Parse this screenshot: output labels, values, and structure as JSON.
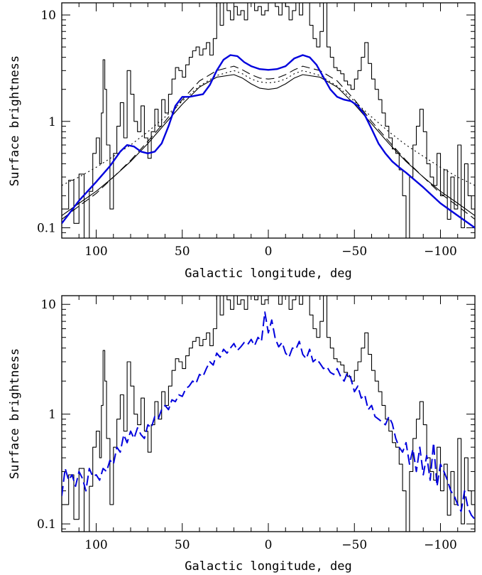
{
  "chart_data": [
    {
      "type": "line",
      "xlabel": "Galactic longitude, deg",
      "ylabel": "Surface brightness",
      "xlim": [
        120,
        -120
      ],
      "ylim": [
        0.08,
        13
      ],
      "yscale": "log",
      "x_ticks": [
        100,
        50,
        0,
        -50,
        -100
      ],
      "x_tick_labels": [
        "100",
        "50",
        "0",
        "−50",
        "−100"
      ],
      "y_ticks": [
        0.1,
        1,
        10
      ],
      "y_tick_labels": [
        "0.1",
        "1",
        "10"
      ],
      "series": [
        {
          "style": "step",
          "color": "#000000",
          "x": [
            120,
            116,
            113,
            110,
            107,
            104,
            102,
            100,
            98,
            97,
            96,
            95,
            94,
            92,
            90,
            88,
            86,
            84,
            82,
            80,
            78,
            76,
            74,
            72,
            70,
            68,
            66,
            64,
            62,
            60,
            58,
            56,
            54,
            52,
            50,
            48,
            46,
            44,
            42,
            40,
            38,
            36,
            34,
            32,
            30,
            28,
            26,
            24,
            22,
            20,
            18,
            16,
            14,
            12,
            10,
            8,
            6,
            4,
            2,
            0,
            -2,
            -4,
            -6,
            -8,
            -10,
            -12,
            -14,
            -16,
            -18,
            -20,
            -22,
            -24,
            -26,
            -28,
            -30,
            -32,
            -34,
            -36,
            -38,
            -40,
            -42,
            -44,
            -46,
            -48,
            -50,
            -52,
            -54,
            -56,
            -58,
            -60,
            -62,
            -64,
            -66,
            -68,
            -70,
            -72,
            -74,
            -76,
            -78,
            -80,
            -82,
            -84,
            -86,
            -88,
            -90,
            -92,
            -94,
            -96,
            -98,
            -100,
            -102,
            -104,
            -106,
            -108,
            -110,
            -112,
            -114,
            -116,
            -118,
            -120
          ],
          "y": [
            0.15,
            0.28,
            0.11,
            0.32,
            0.08,
            0.22,
            0.5,
            0.7,
            0.4,
            1.2,
            3.8,
            2.0,
            0.6,
            0.15,
            0.5,
            0.9,
            1.5,
            0.7,
            3.0,
            1.8,
            1.0,
            0.8,
            1.4,
            0.7,
            0.45,
            0.8,
            1.3,
            0.9,
            1.6,
            1.2,
            1.8,
            2.5,
            3.2,
            3.0,
            2.6,
            3.4,
            4.0,
            4.6,
            5.0,
            4.2,
            4.8,
            5.5,
            4.2,
            6.0,
            20,
            8,
            15,
            11,
            9,
            12,
            10,
            11,
            9,
            20,
            13,
            11,
            12,
            10,
            11,
            15,
            13,
            12,
            10,
            18,
            12,
            9,
            11,
            14,
            10,
            13,
            20,
            8,
            6,
            5,
            7,
            15,
            5,
            4,
            3.2,
            3.0,
            2.8,
            2.4,
            2.2,
            2.0,
            2.5,
            3.0,
            4.0,
            5.5,
            3.5,
            2.5,
            2.0,
            1.6,
            1.2,
            0.9,
            0.7,
            0.55,
            0.5,
            0.35,
            0.2,
            0.08,
            0.3,
            0.6,
            0.9,
            1.3,
            0.8,
            0.4,
            0.3,
            0.25,
            0.5,
            0.2,
            0.35,
            0.12,
            0.3,
            0.15,
            0.6,
            0.1,
            0.4,
            0.2,
            0.15,
            0.12
          ]
        },
        {
          "style": "solid",
          "color": "#000000",
          "x": [
            120,
            110,
            100,
            90,
            80,
            70,
            60,
            50,
            40,
            30,
            20,
            15,
            10,
            5,
            0,
            -5,
            -10,
            -15,
            -20,
            -30,
            -40,
            -50,
            -60,
            -70,
            -80,
            -90,
            -100,
            -110,
            -120
          ],
          "y": [
            0.13,
            0.17,
            0.22,
            0.3,
            0.42,
            0.62,
            0.95,
            1.45,
            2.1,
            2.6,
            2.75,
            2.55,
            2.25,
            2.05,
            2.0,
            2.05,
            2.25,
            2.55,
            2.75,
            2.6,
            2.1,
            1.45,
            0.95,
            0.62,
            0.42,
            0.3,
            0.22,
            0.17,
            0.13
          ]
        },
        {
          "style": "dashed",
          "color": "#000000",
          "x": [
            120,
            110,
            100,
            90,
            80,
            70,
            60,
            50,
            40,
            30,
            20,
            15,
            10,
            5,
            0,
            -5,
            -10,
            -15,
            -20,
            -30,
            -40,
            -50,
            -60,
            -70,
            -80,
            -90,
            -100,
            -110,
            -120
          ],
          "y": [
            0.12,
            0.16,
            0.21,
            0.3,
            0.43,
            0.65,
            1.0,
            1.6,
            2.4,
            3.0,
            3.3,
            3.05,
            2.75,
            2.55,
            2.5,
            2.55,
            2.75,
            3.05,
            3.3,
            3.0,
            2.4,
            1.6,
            1.0,
            0.65,
            0.43,
            0.3,
            0.21,
            0.16,
            0.12
          ]
        },
        {
          "style": "dotted",
          "color": "#000000",
          "x": [
            120,
            110,
            100,
            90,
            80,
            70,
            60,
            50,
            40,
            30,
            20,
            15,
            10,
            5,
            0,
            -5,
            -10,
            -15,
            -20,
            -30,
            -40,
            -50,
            -60,
            -70,
            -80,
            -90,
            -100,
            -110,
            -120
          ],
          "y": [
            0.25,
            0.3,
            0.37,
            0.47,
            0.6,
            0.8,
            1.1,
            1.55,
            2.15,
            2.7,
            3.0,
            2.8,
            2.5,
            2.35,
            2.3,
            2.35,
            2.5,
            2.8,
            3.0,
            2.7,
            2.15,
            1.55,
            1.1,
            0.8,
            0.6,
            0.47,
            0.37,
            0.3,
            0.25
          ]
        },
        {
          "style": "solid",
          "color": "#0000dd",
          "width": 2.4,
          "x": [
            120,
            110,
            100,
            92,
            86,
            82,
            78,
            74,
            70,
            66,
            62,
            58,
            54,
            50,
            46,
            42,
            38,
            34,
            30,
            26,
            22,
            18,
            14,
            10,
            5,
            0,
            -5,
            -10,
            -15,
            -20,
            -24,
            -28,
            -32,
            -36,
            -40,
            -44,
            -48,
            -52,
            -56,
            -60,
            -64,
            -68,
            -72,
            -76,
            -80,
            -90,
            -100,
            -110,
            -120
          ],
          "y": [
            0.11,
            0.18,
            0.27,
            0.38,
            0.52,
            0.6,
            0.58,
            0.52,
            0.5,
            0.52,
            0.62,
            0.9,
            1.4,
            1.7,
            1.7,
            1.75,
            1.8,
            2.2,
            3.0,
            3.8,
            4.2,
            4.1,
            3.6,
            3.3,
            3.1,
            3.05,
            3.1,
            3.3,
            3.9,
            4.2,
            4.0,
            3.4,
            2.6,
            2.0,
            1.7,
            1.6,
            1.55,
            1.4,
            1.15,
            0.85,
            0.62,
            0.5,
            0.42,
            0.37,
            0.33,
            0.24,
            0.17,
            0.13,
            0.1
          ]
        }
      ]
    },
    {
      "type": "line",
      "xlabel": "Galactic longitude, deg",
      "ylabel": "Surface brightness",
      "xlim": [
        120,
        -120
      ],
      "ylim": [
        0.085,
        12
      ],
      "yscale": "log",
      "x_ticks": [
        100,
        50,
        0,
        -50,
        -100
      ],
      "x_tick_labels": [
        "100",
        "50",
        "0",
        "−50",
        "−100"
      ],
      "y_ticks": [
        0.1,
        1,
        10
      ],
      "y_tick_labels": [
        "0.1",
        "1",
        "10"
      ],
      "series": [
        {
          "style": "step",
          "color": "#000000",
          "x": [
            120,
            116,
            113,
            110,
            107,
            104,
            102,
            100,
            98,
            97,
            96,
            95,
            94,
            92,
            90,
            88,
            86,
            84,
            82,
            80,
            78,
            76,
            74,
            72,
            70,
            68,
            66,
            64,
            62,
            60,
            58,
            56,
            54,
            52,
            50,
            48,
            46,
            44,
            42,
            40,
            38,
            36,
            34,
            32,
            30,
            28,
            26,
            24,
            22,
            20,
            18,
            16,
            14,
            12,
            10,
            8,
            6,
            4,
            2,
            0,
            -2,
            -4,
            -6,
            -8,
            -10,
            -12,
            -14,
            -16,
            -18,
            -20,
            -22,
            -24,
            -26,
            -28,
            -30,
            -32,
            -34,
            -36,
            -38,
            -40,
            -42,
            -44,
            -46,
            -48,
            -50,
            -52,
            -54,
            -56,
            -58,
            -60,
            -62,
            -64,
            -66,
            -68,
            -70,
            -72,
            -74,
            -76,
            -78,
            -80,
            -82,
            -84,
            -86,
            -88,
            -90,
            -92,
            -94,
            -96,
            -98,
            -100,
            -102,
            -104,
            -106,
            -108,
            -110,
            -112,
            -114,
            -116,
            -118,
            -120
          ],
          "y": [
            0.15,
            0.28,
            0.11,
            0.32,
            0.08,
            0.22,
            0.5,
            0.7,
            0.4,
            1.2,
            3.8,
            2.0,
            0.6,
            0.15,
            0.5,
            0.9,
            1.5,
            0.7,
            3.0,
            1.8,
            1.0,
            0.8,
            1.4,
            0.7,
            0.45,
            0.8,
            1.3,
            0.9,
            1.6,
            1.2,
            1.8,
            2.5,
            3.2,
            3.0,
            2.6,
            3.4,
            4.0,
            4.6,
            5.0,
            4.2,
            4.8,
            5.5,
            4.2,
            6.0,
            20,
            8,
            15,
            11,
            9,
            12,
            10,
            11,
            9,
            20,
            13,
            11,
            12,
            10,
            11,
            15,
            13,
            12,
            10,
            18,
            12,
            9,
            11,
            14,
            10,
            13,
            20,
            8,
            6,
            5,
            7,
            15,
            5,
            4,
            3.2,
            3.0,
            2.8,
            2.4,
            2.2,
            2.0,
            2.5,
            3.0,
            4.0,
            5.5,
            3.5,
            2.5,
            2.0,
            1.6,
            1.2,
            0.9,
            0.7,
            0.55,
            0.5,
            0.35,
            0.2,
            0.08,
            0.3,
            0.6,
            0.9,
            1.3,
            0.8,
            0.4,
            0.3,
            0.25,
            0.5,
            0.2,
            0.35,
            0.12,
            0.3,
            0.15,
            0.6,
            0.1,
            0.4,
            0.2,
            0.15,
            0.12
          ]
        },
        {
          "style": "dashed",
          "color": "#0000dd",
          "width": 2.0,
          "x": [
            120,
            118,
            116,
            114,
            112,
            110,
            108,
            106,
            104,
            102,
            100,
            98,
            96,
            94,
            92,
            90,
            88,
            86,
            84,
            82,
            80,
            78,
            76,
            74,
            72,
            70,
            68,
            66,
            64,
            62,
            60,
            58,
            56,
            54,
            52,
            50,
            48,
            46,
            44,
            42,
            40,
            38,
            36,
            34,
            32,
            30,
            28,
            26,
            24,
            22,
            20,
            18,
            16,
            14,
            12,
            10,
            8,
            6,
            4,
            2,
            0,
            -2,
            -4,
            -6,
            -8,
            -10,
            -12,
            -14,
            -16,
            -18,
            -20,
            -22,
            -24,
            -26,
            -28,
            -30,
            -32,
            -34,
            -36,
            -38,
            -40,
            -42,
            -44,
            -46,
            -48,
            -50,
            -52,
            -54,
            -56,
            -58,
            -60,
            -62,
            -64,
            -66,
            -68,
            -70,
            -72,
            -74,
            -76,
            -78,
            -80,
            -82,
            -84,
            -86,
            -88,
            -90,
            -92,
            -94,
            -96,
            -98,
            -100,
            -102,
            -104,
            -106,
            -108,
            -110,
            -112,
            -114,
            -116,
            -118,
            -120
          ],
          "y": [
            0.18,
            0.32,
            0.25,
            0.28,
            0.22,
            0.3,
            0.26,
            0.2,
            0.32,
            0.27,
            0.28,
            0.25,
            0.32,
            0.3,
            0.38,
            0.35,
            0.5,
            0.45,
            0.65,
            0.55,
            0.7,
            0.6,
            0.75,
            0.65,
            0.6,
            0.8,
            0.75,
            0.95,
            0.9,
            1.1,
            1.2,
            1.1,
            1.35,
            1.3,
            1.5,
            1.45,
            1.7,
            1.8,
            2.0,
            1.9,
            2.3,
            2.2,
            2.6,
            3.0,
            2.8,
            3.6,
            3.3,
            3.9,
            3.6,
            4.0,
            4.4,
            3.8,
            4.1,
            4.5,
            4.3,
            4.8,
            4.2,
            5.0,
            4.6,
            8.5,
            5.5,
            7.2,
            4.9,
            4.1,
            4.5,
            3.6,
            3.3,
            4.0,
            3.9,
            4.6,
            3.5,
            3.2,
            3.9,
            3.0,
            3.2,
            2.9,
            2.6,
            2.7,
            2.4,
            2.3,
            2.6,
            2.2,
            2.0,
            2.4,
            2.1,
            1.6,
            1.8,
            1.4,
            1.5,
            1.1,
            1.2,
            0.95,
            0.9,
            0.85,
            0.8,
            0.95,
            0.82,
            0.6,
            0.5,
            0.45,
            0.55,
            0.35,
            0.48,
            0.3,
            0.5,
            0.28,
            0.42,
            0.25,
            0.55,
            0.22,
            0.35,
            0.3,
            0.25,
            0.2,
            0.18,
            0.15,
            0.13,
            0.2,
            0.14,
            0.12,
            0.11
          ]
        }
      ]
    }
  ]
}
